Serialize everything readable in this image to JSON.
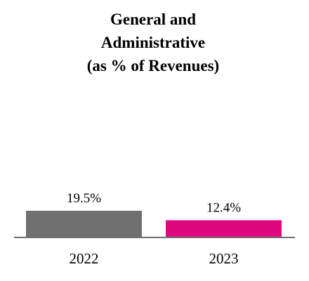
{
  "chart_data": {
    "type": "bar",
    "title_lines": [
      "General and",
      "Administrative",
      "(as % of Revenues)"
    ],
    "categories": [
      "2022",
      "2023"
    ],
    "values": [
      19.5,
      12.4
    ],
    "value_labels": [
      "19.5%",
      "12.4%"
    ],
    "colors": [
      "#707070",
      "#e0087f"
    ],
    "axis_color": "#707070",
    "ylim": [
      0,
      19.5
    ],
    "grid": false,
    "legend": "none"
  }
}
